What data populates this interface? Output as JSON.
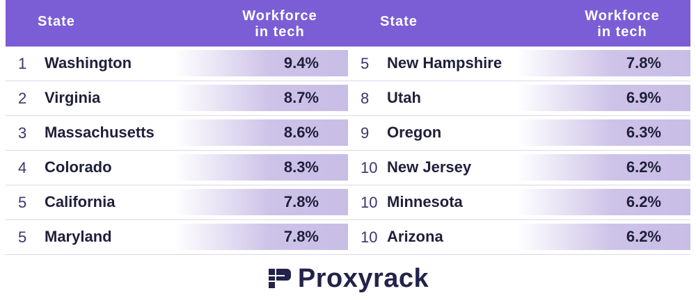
{
  "header": {
    "state_label": "State",
    "metric_label_line1": "Workforce",
    "metric_label_line2": "in tech"
  },
  "left_rows": [
    {
      "rank": "1",
      "state": "Washington",
      "value": "9.4%"
    },
    {
      "rank": "2",
      "state": "Virginia",
      "value": "8.7%"
    },
    {
      "rank": "3",
      "state": "Massachusetts",
      "value": "8.6%"
    },
    {
      "rank": "4",
      "state": "Colorado",
      "value": "8.3%"
    },
    {
      "rank": "5",
      "state": "California",
      "value": "7.8%"
    },
    {
      "rank": "5",
      "state": "Maryland",
      "value": "7.8%"
    }
  ],
  "right_rows": [
    {
      "rank": "5",
      "state": "New Hampshire",
      "value": "7.8%"
    },
    {
      "rank": "8",
      "state": "Utah",
      "value": "6.9%"
    },
    {
      "rank": "9",
      "state": "Oregon",
      "value": "6.3%"
    },
    {
      "rank": "10",
      "state": "New Jersey",
      "value": "6.2%"
    },
    {
      "rank": "10",
      "state": "Minnesota",
      "value": "6.2%"
    },
    {
      "rank": "10",
      "state": "Arizona",
      "value": "6.2%"
    }
  ],
  "brand": {
    "name": "Proxyrack",
    "icon": "proxyrack-logo-icon"
  },
  "colors": {
    "header_bg": "#7b5ed6",
    "bar": "#cdc3e8",
    "text_dark": "#1f1f3a"
  }
}
